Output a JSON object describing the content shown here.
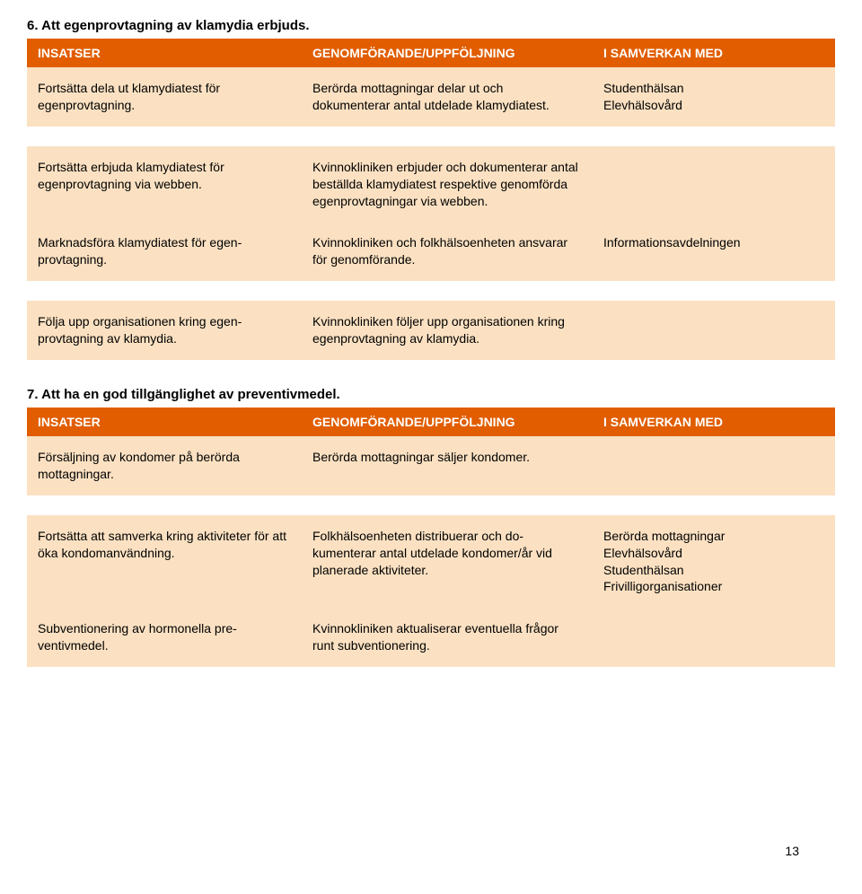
{
  "colors": {
    "header_bg": "#e15d00",
    "header_text": "#ffffff",
    "row_bg": "#fbe1c2",
    "text": "#000000"
  },
  "page_number": "13",
  "sections": [
    {
      "title": "6. Att egenprovtagning av klamydia erbjuds.",
      "headers": {
        "col1": "INSATSER",
        "col2": "GENOMFÖRANDE/UPPFÖLJNING",
        "col3": "I SAMVERKAN MED"
      },
      "rows": [
        {
          "c1": "Fortsätta dela ut klamydiatest för egenprovtagning.",
          "c2": "Berörda mottagningar delar ut och dokumenterar antal utdelade klamy­diatest.",
          "c3": "Studenthälsan\nElevhälsovård"
        },
        {
          "spacer": true
        },
        {
          "c1": "Fortsätta erbjuda klamydiatest för egenprovtagning via webben.",
          "c2": "Kvinnokliniken erbjuder och doku­menterar antal beställda klamydiatest respektive genomförda egenprovtag­ningar via webben.",
          "c3": ""
        },
        {
          "c1": "Marknadsföra klamydiatest för egen­provtagning.",
          "c2": "Kvinnokliniken och folkhälsoenheten ansvarar för genomförande.",
          "c3": "Informationsavdelningen"
        },
        {
          "spacer": true
        },
        {
          "c1": "Följa upp organisationen kring egen­provtagning av klamydia.",
          "c2": "Kvinnokliniken följer upp organisatio­nen kring egenprovtagning av klamy­dia.",
          "c3": ""
        }
      ]
    },
    {
      "title": "7. Att ha en god tillgänglighet av preventivmedel.",
      "headers": {
        "col1": "INSATSER",
        "col2": "GENOMFÖRANDE/UPPFÖLJNING",
        "col3": "I SAMVERKAN MED"
      },
      "rows": [
        {
          "c1": "Försäljning av kondomer på berörda mottagningar.",
          "c2": "Berörda mottagningar säljer kondomer.",
          "c3": ""
        },
        {
          "spacer": true
        },
        {
          "c1": "Fortsätta att samverka kring aktiviteter för att öka kondomanvändning.",
          "c2": "Folkhälsoenheten distribuerar och do­kumenterar antal utdelade kondomer/år vid planerade aktiviteter.",
          "c3": "Berörda mottagningar\nElevhälsovård\nStudenthälsan\nFrivilligorganisationer"
        },
        {
          "c1": "Subventionering av hormonella pre­ventivmedel.",
          "c2": "Kvinnokliniken aktualiserar eventuella frågor runt subventionering.",
          "c3": ""
        }
      ]
    }
  ]
}
